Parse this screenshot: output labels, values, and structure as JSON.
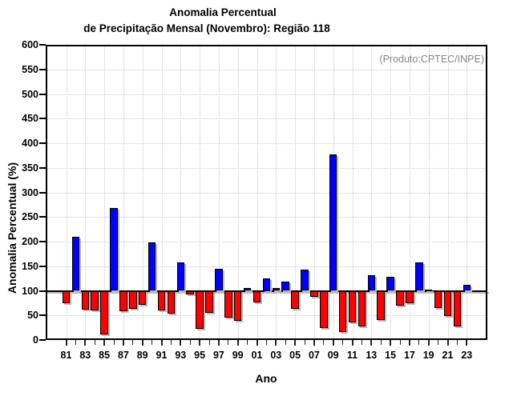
{
  "title": {
    "line1": "Anomalia Percentual",
    "line2": "de Precipitação Mensal (Novembro): Região 118"
  },
  "annotation": {
    "text": "(Produto:CPTEC/INPE)",
    "color": "#868686"
  },
  "axes": {
    "y_title": "Anomalia Percentual (%)",
    "x_title": "Ano"
  },
  "chart_data": {
    "type": "bar",
    "title": "Anomalia Percentual de Precipitação Mensal (Novembro): Região 118",
    "xlabel": "Ano",
    "ylabel": "Anomalia Percentual (%)",
    "ylim": [
      0,
      600
    ],
    "yticks": [
      0,
      50,
      100,
      150,
      200,
      250,
      300,
      350,
      400,
      450,
      500,
      550,
      600
    ],
    "baseline": 100,
    "grid": "dotted gray, horizontal every 50, vertical every 2 years",
    "x_label_every": 2,
    "colors": {
      "above_baseline": "#0000ff",
      "below_baseline": "#ff0000",
      "bar_border": "#000000",
      "grid": "#c9c9c9",
      "baseline_line": "#000000"
    },
    "categories": [
      "81",
      "82",
      "83",
      "84",
      "85",
      "86",
      "87",
      "88",
      "89",
      "90",
      "91",
      "92",
      "93",
      "94",
      "95",
      "96",
      "97",
      "98",
      "99",
      "00",
      "01",
      "02",
      "03",
      "04",
      "05",
      "06",
      "07",
      "08",
      "09",
      "10",
      "11",
      "12",
      "13",
      "14",
      "15",
      "16",
      "17",
      "18",
      "19",
      "20",
      "21",
      "22",
      "23"
    ],
    "values": [
      74,
      210,
      62,
      60,
      12,
      268,
      59,
      63,
      72,
      198,
      60,
      53,
      158,
      92,
      22,
      55,
      145,
      45,
      39,
      105,
      76,
      125,
      106,
      118,
      64,
      143,
      88,
      24,
      378,
      17,
      36,
      27,
      132,
      41,
      129,
      70,
      74,
      157,
      103,
      65,
      49,
      28,
      112
    ]
  }
}
